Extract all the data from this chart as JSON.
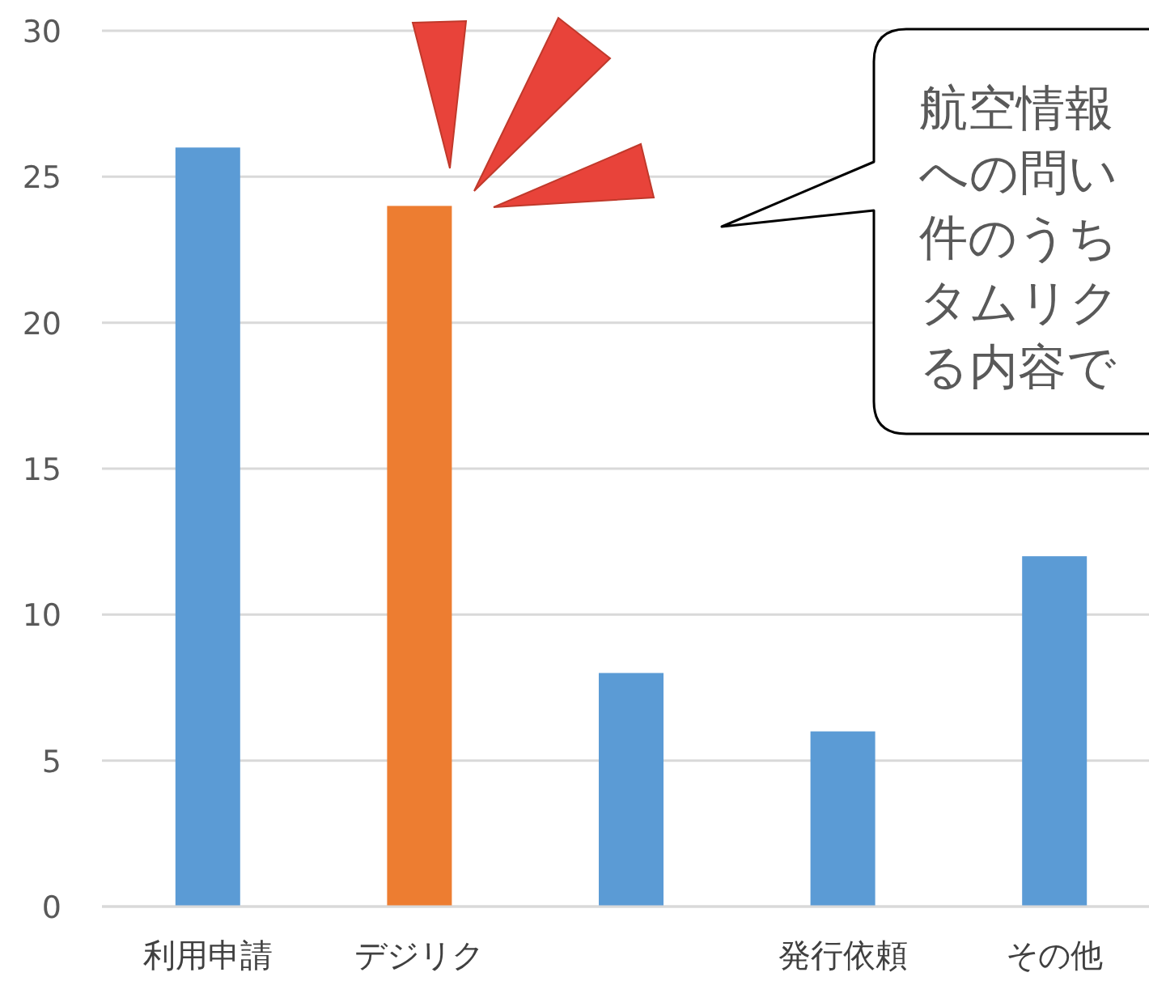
{
  "chart_data": {
    "type": "bar",
    "categories": [
      "利用申請",
      "デジリク",
      null,
      "発行依頼",
      "その他"
    ],
    "values": [
      26,
      24,
      8,
      6,
      12
    ],
    "colors": [
      "#5b9bd5",
      "#ed7d31",
      "#5b9bd5",
      "#5b9bd5",
      "#5b9bd5"
    ],
    "ylim": [
      0,
      30
    ],
    "yticks": [
      0,
      5,
      10,
      15,
      20,
      25,
      30
    ],
    "grid": "y",
    "annotations": [
      "航空情報",
      "への問い",
      "件のうち",
      "タムリク",
      "る内容で"
    ]
  }
}
